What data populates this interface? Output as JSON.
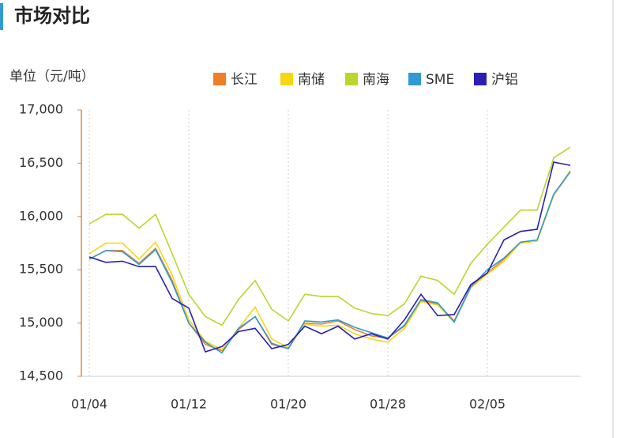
{
  "chart_data": {
    "type": "line",
    "title": "市场对比",
    "ylabel": "单位（元/吨）",
    "categories": [
      "01/04",
      null,
      null,
      null,
      null,
      null,
      "01/12",
      null,
      null,
      null,
      null,
      null,
      "01/20",
      null,
      null,
      null,
      null,
      null,
      "01/28",
      null,
      null,
      null,
      null,
      null,
      "02/05",
      null,
      null,
      null,
      null,
      null
    ],
    "series": [
      {
        "name": "长江",
        "color": "#f07f2a",
        "values": [
          15600,
          15680,
          15680,
          15560,
          15700,
          15400,
          15000,
          14800,
          14740,
          14940,
          15060,
          14800,
          14760,
          15000,
          14990,
          15020,
          14940,
          14880,
          14860,
          14970,
          15210,
          15180,
          15020,
          15340,
          15470,
          15600,
          15750,
          15770,
          16200,
          16420
        ]
      },
      {
        "name": "南储",
        "color": "#f5d712",
        "values": [
          15650,
          15750,
          15750,
          15600,
          15760,
          15450,
          15030,
          14830,
          14750,
          14950,
          15150,
          14850,
          14770,
          14990,
          14970,
          14980,
          14900,
          14850,
          14820,
          14950,
          15200,
          15170,
          15010,
          15330,
          15460,
          15580,
          15750,
          15770,
          16200,
          16430
        ]
      },
      {
        "name": "南海",
        "color": "#b6d82c",
        "values": [
          15930,
          16020,
          16020,
          15890,
          16020,
          15650,
          15270,
          15060,
          14980,
          15220,
          15400,
          15130,
          15020,
          15270,
          15250,
          15250,
          15140,
          15090,
          15070,
          15180,
          15440,
          15400,
          15270,
          15560,
          15740,
          15900,
          16060,
          16060,
          16550,
          16650
        ]
      },
      {
        "name": "SME",
        "color": "#2f9bd0",
        "values": [
          15600,
          15680,
          15670,
          15550,
          15690,
          15380,
          15000,
          14820,
          14720,
          14950,
          15060,
          14810,
          14760,
          15020,
          15010,
          15030,
          14960,
          14910,
          14860,
          14980,
          15220,
          15190,
          15010,
          15340,
          15500,
          15610,
          15760,
          15780,
          16210,
          16420
        ]
      },
      {
        "name": "沪铝",
        "color": "#2a1fb5",
        "values": [
          15620,
          15570,
          15580,
          15530,
          15530,
          15230,
          15140,
          14730,
          14780,
          14920,
          14950,
          14760,
          14800,
          14970,
          14900,
          14970,
          14850,
          14900,
          14850,
          15030,
          15270,
          15070,
          15080,
          15360,
          15470,
          15780,
          15860,
          15880,
          16510,
          16480
        ]
      }
    ],
    "ylim": [
      14500,
      17000
    ],
    "yticks": [
      {
        "value": 14500,
        "label": "14,500"
      },
      {
        "value": 15000,
        "label": "15,000"
      },
      {
        "value": 15500,
        "label": "15,500"
      },
      {
        "value": 16000,
        "label": "16,000"
      },
      {
        "value": 16500,
        "label": "16,500"
      },
      {
        "value": 17000,
        "label": "17,000"
      }
    ],
    "grid": true
  }
}
